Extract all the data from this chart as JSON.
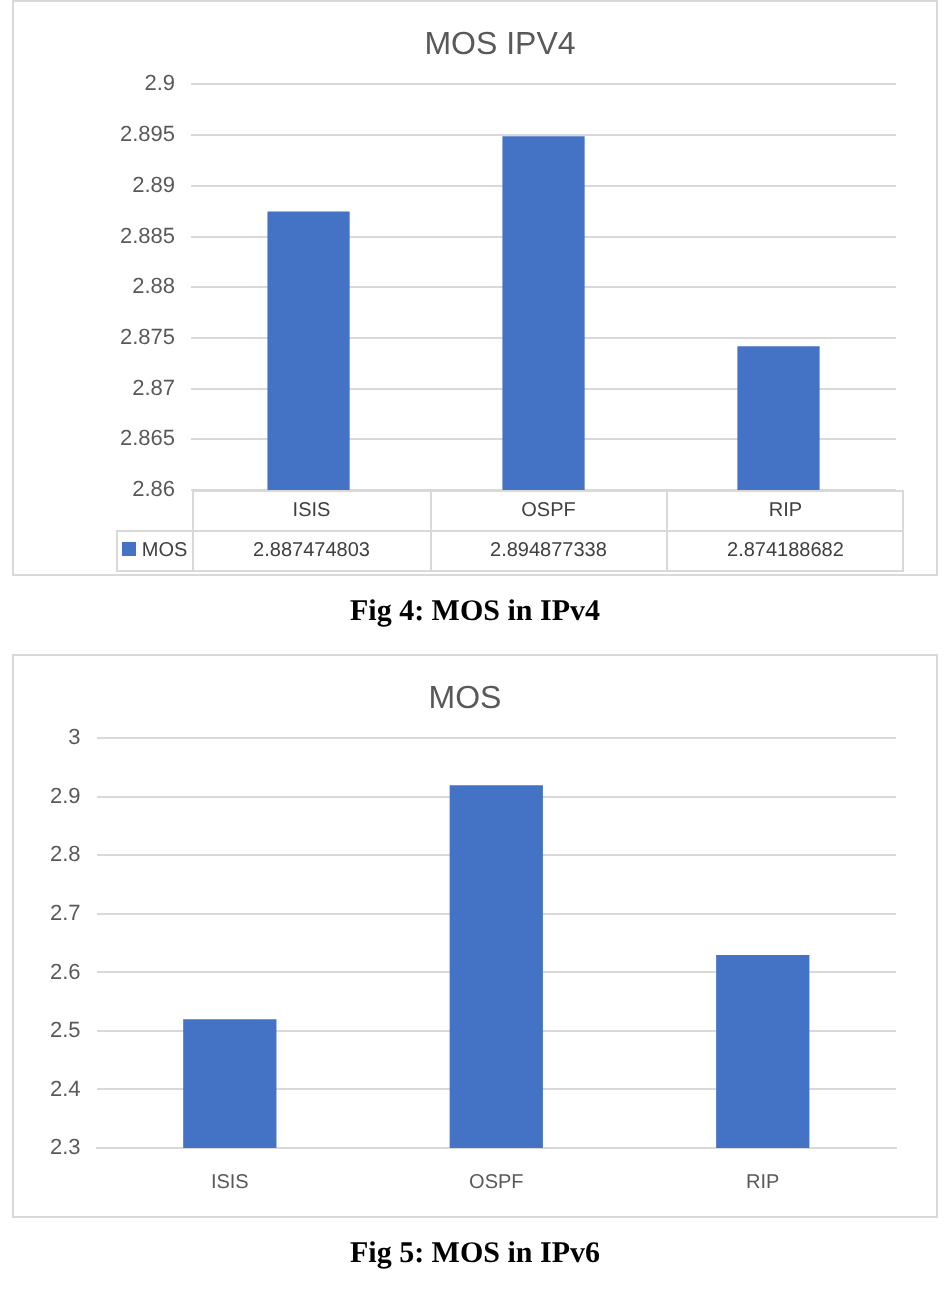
{
  "chart_data": [
    {
      "type": "bar",
      "title": "MOS IPV4",
      "categories": [
        "ISIS",
        "OSPF",
        "RIP"
      ],
      "series": [
        {
          "name": "MOS",
          "color": "#4472c4",
          "values": [
            2.887474803,
            2.894877338,
            2.874188682
          ]
        }
      ],
      "ylim": [
        2.86,
        2.9
      ],
      "yticks": [
        2.86,
        2.865,
        2.87,
        2.875,
        2.88,
        2.885,
        2.89,
        2.895,
        2.9
      ],
      "grid": "y",
      "data_labels": true,
      "annotations": [
        "Fig 4: MOS in IPv4"
      ]
    },
    {
      "type": "bar",
      "title": "MOS",
      "categories": [
        "ISIS",
        "OSPF",
        "RIP"
      ],
      "series": [
        {
          "color": "#4472c4",
          "values": [
            2.52,
            2.92,
            2.63
          ]
        }
      ],
      "ylim": [
        2.3,
        3
      ],
      "yticks": [
        2.3,
        2.4,
        2.5,
        2.6,
        2.7,
        2.8,
        2.9,
        3
      ],
      "grid": "y",
      "annotations": [
        "Fig 5: MOS in IPv6"
      ]
    }
  ]
}
